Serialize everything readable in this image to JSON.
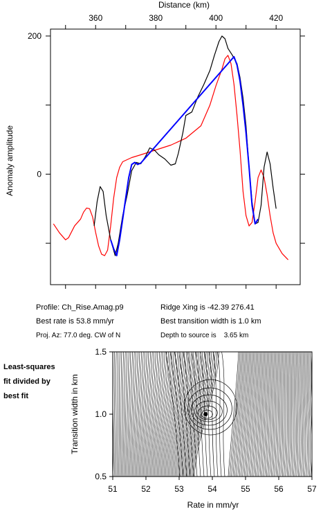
{
  "chart_data": [
    {
      "type": "line",
      "xlabel": "Distance (km)",
      "ylabel": "Anomaly amplitude",
      "xlim": [
        345,
        428
      ],
      "ylim": [
        -160,
        210
      ],
      "xticks": [
        360,
        380,
        400,
        420
      ],
      "yticks": [
        0,
        200
      ],
      "grid": false,
      "series": [
        {
          "color": "#000000",
          "points": [
            [
              359.5,
              -75
            ],
            [
              360.5,
              -40
            ],
            [
              361.5,
              -18
            ],
            [
              362.5,
              -25
            ],
            [
              363.5,
              -60
            ],
            [
              365,
              -95
            ],
            [
              366.5,
              -118
            ],
            [
              367.5,
              -100
            ],
            [
              369,
              -60
            ],
            [
              370.5,
              -30
            ],
            [
              372,
              5
            ],
            [
              373.5,
              17
            ],
            [
              375,
              15
            ],
            [
              376.5,
              25
            ],
            [
              378,
              38
            ],
            [
              379.5,
              35
            ],
            [
              381,
              28
            ],
            [
              383,
              22
            ],
            [
              385,
              13
            ],
            [
              386.5,
              15
            ],
            [
              387.5,
              30
            ],
            [
              389,
              60
            ],
            [
              390,
              85
            ],
            [
              392,
              90
            ],
            [
              394,
              112
            ],
            [
              396,
              130
            ],
            [
              398,
              150
            ],
            [
              399.5,
              172
            ],
            [
              401,
              192
            ],
            [
              402,
              200
            ],
            [
              403,
              196
            ],
            [
              404,
              182
            ],
            [
              405.5,
              172
            ],
            [
              407,
              160
            ],
            [
              408,
              140
            ],
            [
              409,
              110
            ],
            [
              410,
              70
            ],
            [
              411,
              10
            ],
            [
              412,
              -40
            ],
            [
              413,
              -72
            ],
            [
              414,
              -70
            ],
            [
              415,
              -45
            ],
            [
              416,
              10
            ],
            [
              417,
              32
            ],
            [
              418,
              15
            ],
            [
              419,
              -20
            ],
            [
              420,
              -50
            ]
          ]
        },
        {
          "color": "#0000ff",
          "points": [
            [
              365,
              -95
            ],
            [
              366,
              -108
            ],
            [
              367,
              -118
            ],
            [
              368,
              -95
            ],
            [
              369,
              -65
            ],
            [
              370,
              -35
            ],
            [
              371,
              -5
            ],
            [
              372,
              14
            ],
            [
              373,
              17
            ],
            [
              374,
              14
            ],
            [
              375,
              16
            ],
            [
              405,
              165
            ],
            [
              406,
              170
            ],
            [
              407,
              158
            ],
            [
              408,
              135
            ],
            [
              409,
              100
            ],
            [
              410,
              60
            ],
            [
              411,
              10
            ],
            [
              412,
              -45
            ],
            [
              413,
              -72
            ],
            [
              414,
              -65
            ]
          ]
        },
        {
          "color": "#ff0000",
          "points": [
            [
              346,
              -72
            ],
            [
              348,
              -85
            ],
            [
              350,
              -95
            ],
            [
              351,
              -92
            ],
            [
              353,
              -75
            ],
            [
              355,
              -65
            ],
            [
              356,
              -55
            ],
            [
              357,
              -49
            ],
            [
              358,
              -50
            ],
            [
              359,
              -62
            ],
            [
              360,
              -84
            ],
            [
              361,
              -104
            ],
            [
              362,
              -116
            ],
            [
              363,
              -118
            ],
            [
              364,
              -110
            ],
            [
              365,
              -75
            ],
            [
              366,
              -35
            ],
            [
              367,
              -5
            ],
            [
              368,
              10
            ],
            [
              369,
              18
            ],
            [
              370,
              20
            ],
            [
              372,
              24
            ],
            [
              375,
              28
            ],
            [
              380,
              35
            ],
            [
              385,
              42
            ],
            [
              390,
              52
            ],
            [
              395,
              70
            ],
            [
              398,
              100
            ],
            [
              400,
              128
            ],
            [
              402,
              152
            ],
            [
              403,
              167
            ],
            [
              404,
              172
            ],
            [
              405,
              160
            ],
            [
              406,
              130
            ],
            [
              407,
              85
            ],
            [
              408,
              35
            ],
            [
              409,
              -25
            ],
            [
              410,
              -60
            ],
            [
              411,
              -75
            ],
            [
              412,
              -70
            ],
            [
              413,
              -40
            ],
            [
              414,
              -5
            ],
            [
              415,
              6
            ],
            [
              416,
              -5
            ],
            [
              417,
              -30
            ],
            [
              418,
              -60
            ],
            [
              419,
              -85
            ],
            [
              420,
              -100
            ],
            [
              422,
              -115
            ],
            [
              424,
              -124
            ]
          ]
        }
      ]
    },
    {
      "type": "contour",
      "xlabel": "Rate in mm/yr",
      "ylabel": "Transition width in km",
      "xlim": [
        51,
        57
      ],
      "ylim": [
        0.5,
        1.5
      ],
      "xticks": [
        "51",
        "52",
        "53",
        "54",
        "55",
        "56",
        "57"
      ],
      "yticks": [
        "0.5",
        "1.0",
        "1.5"
      ],
      "best_fit": {
        "rate": 53.8,
        "width": 1.0
      }
    }
  ],
  "info": {
    "profile": "Profile: Ch_Rise.Amag.p9",
    "ridge": "Ridge Xing is -42.39 276.41",
    "rate": "Best rate is 53.8 mm/yr",
    "width": "Best transition width is 1.0 km",
    "azimuth": "Proj. Az: 77.0 deg. CW of N",
    "depth": "Depth to source is    3.65 km"
  },
  "side_label": [
    "Least-squares",
    "fit divided by",
    "best fit"
  ]
}
